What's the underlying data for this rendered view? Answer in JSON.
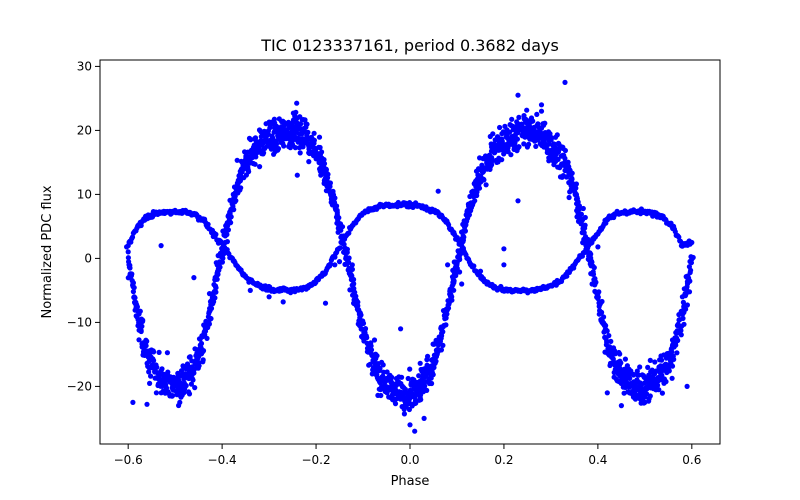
{
  "chart_data": {
    "type": "scatter",
    "title": "TIC 0123337161, period 0.3682 days",
    "xlabel": "Phase",
    "ylabel": "Normalized PDC flux",
    "xlim": [
      -0.66,
      0.66
    ],
    "ylim": [
      -29.0,
      31.0
    ],
    "xticks": [
      -0.6,
      -0.4,
      -0.2,
      0.0,
      0.2,
      0.4,
      0.6
    ],
    "xtick_labels": [
      "−0.6",
      "−0.4",
      "−0.2",
      "0.0",
      "0.2",
      "0.4",
      "0.6"
    ],
    "yticks": [
      -20,
      -10,
      0,
      10,
      20,
      30
    ],
    "ytick_labels": [
      "−20",
      "−10",
      "0",
      "10",
      "20",
      "30"
    ],
    "grid": false,
    "marker_color": "#0000ff",
    "series": [
      {
        "description_from_figure": "dense phase-folded light curve: dominant double-humped wave (maxima ~+20 at phase ±0.25, minima ~-20 at phase ±0.5 and 0.0) plus a lower-amplitude anti-phased track (~+7 at phase ±0.5 and 0.0, ~-4 at phase ±0.25)",
        "x": [
          -0.6,
          -0.58,
          -0.56,
          -0.54,
          -0.52,
          -0.5,
          -0.48,
          -0.46,
          -0.44,
          -0.42,
          -0.4,
          -0.38,
          -0.36,
          -0.34,
          -0.32,
          -0.3,
          -0.28,
          -0.26,
          -0.25,
          -0.24,
          -0.22,
          -0.2,
          -0.18,
          -0.16,
          -0.14,
          -0.12,
          -0.1,
          -0.08,
          -0.06,
          -0.04,
          -0.02,
          0.0,
          0.02,
          0.04,
          0.06,
          0.08,
          0.1,
          0.12,
          0.14,
          0.16,
          0.18,
          0.2,
          0.22,
          0.24,
          0.25,
          0.26,
          0.28,
          0.3,
          0.32,
          0.34,
          0.36,
          0.38,
          0.4,
          0.42,
          0.44,
          0.46,
          0.48,
          0.5,
          0.52,
          0.54,
          0.56,
          0.58,
          0.6
        ],
        "y_main": [
          0,
          -9,
          -15,
          -18,
          -19,
          -20,
          -19,
          -17,
          -13,
          -6,
          1,
          8,
          13,
          16,
          18,
          19,
          19,
          20,
          20,
          20,
          19,
          17,
          13,
          8,
          2,
          -5,
          -11,
          -16,
          -19,
          -20,
          -21,
          -21,
          -20,
          -18,
          -14,
          -8,
          -1,
          6,
          11,
          15,
          17,
          18,
          19,
          20,
          20,
          20,
          19,
          18,
          16,
          13,
          8,
          1,
          -6,
          -13,
          -17,
          -19,
          -20,
          -20,
          -19,
          -18,
          -15,
          -9,
          0
        ],
        "y_secondary": [
          2,
          5,
          6.5,
          7,
          7.2,
          7.3,
          7.3,
          7,
          6,
          4,
          2,
          0,
          -2,
          -3.5,
          -4.3,
          -4.7,
          -4.9,
          -5,
          -5,
          -4.9,
          -4.5,
          -3.6,
          -2,
          0.5,
          3,
          5.5,
          7,
          7.8,
          8.2,
          8.4,
          8.4,
          8.4,
          8.2,
          7.8,
          7,
          5.5,
          3,
          0.5,
          -2,
          -3.6,
          -4.5,
          -4.9,
          -5,
          -5,
          -5,
          -4.9,
          -4.7,
          -4.3,
          -3.5,
          -2,
          0,
          2,
          4,
          6,
          7,
          7.3,
          7.3,
          7.2,
          7,
          6.5,
          5,
          2,
          2.5
        ]
      }
    ]
  }
}
